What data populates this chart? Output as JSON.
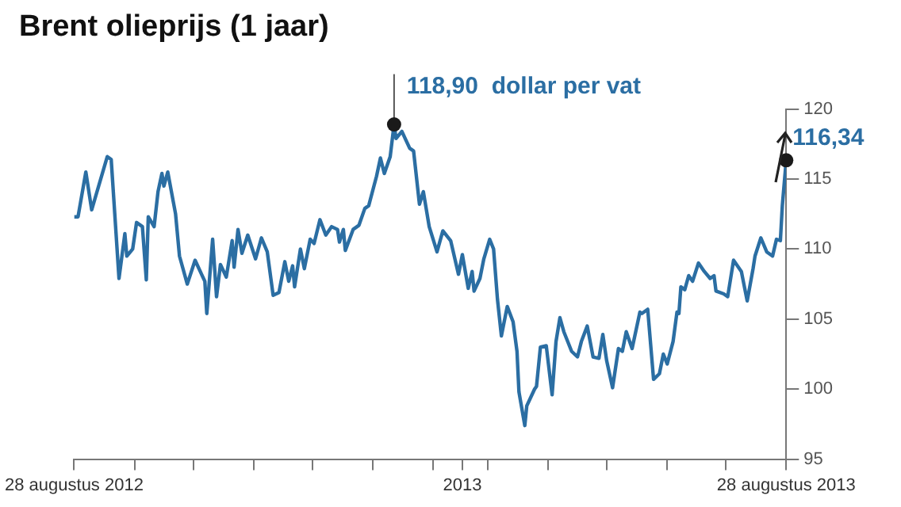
{
  "chart_data": {
    "type": "line",
    "title": "Brent olieprijs (1 jaar)",
    "x": [
      "2012-08-28",
      "2012-08-30",
      "2012-09-03",
      "2012-09-06",
      "2012-09-14",
      "2012-09-16",
      "2012-09-20",
      "2012-09-23",
      "2012-09-24",
      "2012-09-27",
      "2012-09-29",
      "2012-10-02",
      "2012-10-04",
      "2012-10-05",
      "2012-10-08",
      "2012-10-10",
      "2012-10-12",
      "2012-10-13",
      "2012-10-15",
      "2012-10-19",
      "2012-10-21",
      "2012-10-25",
      "2012-10-29",
      "2012-11-03",
      "2012-11-04",
      "2012-11-07",
      "2012-11-09",
      "2012-11-11",
      "2012-11-14",
      "2012-11-17",
      "2012-11-18",
      "2012-11-20",
      "2012-11-22",
      "2012-11-25",
      "2012-11-29",
      "2012-12-02",
      "2012-12-05",
      "2012-12-08",
      "2012-12-11",
      "2012-12-14",
      "2012-12-16",
      "2012-12-18",
      "2012-12-19",
      "2012-12-22",
      "2012-12-24",
      "2012-12-27",
      "2012-12-29",
      "2013-01-01",
      "2013-01-04",
      "2013-01-07",
      "2013-01-10",
      "2013-01-11",
      "2013-01-13",
      "2013-01-14",
      "2013-01-18",
      "2013-01-21",
      "2013-01-24",
      "2013-01-26",
      "2013-01-30",
      "2013-02-01",
      "2013-02-03",
      "2013-02-06",
      "2013-02-08",
      "2013-02-09",
      "2013-02-12",
      "2013-02-16",
      "2013-02-18",
      "2013-02-21",
      "2013-02-23",
      "2013-02-26",
      "2013-03-02",
      "2013-03-05",
      "2013-03-09",
      "2013-03-13",
      "2013-03-15",
      "2013-03-18",
      "2013-03-20",
      "2013-03-21",
      "2013-03-24",
      "2013-03-26",
      "2013-03-29",
      "2013-03-31",
      "2013-04-02",
      "2013-04-04",
      "2013-04-07",
      "2013-04-10",
      "2013-04-12",
      "2013-04-13",
      "2013-04-16",
      "2013-04-17",
      "2013-04-21",
      "2013-04-22",
      "2013-04-24",
      "2013-04-27",
      "2013-04-30",
      "2013-05-02",
      "2013-05-04",
      "2013-05-06",
      "2013-05-10",
      "2013-05-13",
      "2013-05-15",
      "2013-05-18",
      "2013-05-21",
      "2013-05-24",
      "2013-05-26",
      "2013-05-28",
      "2013-05-31",
      "2013-06-03",
      "2013-06-05",
      "2013-06-07",
      "2013-06-10",
      "2013-06-14",
      "2013-06-15",
      "2013-06-18",
      "2013-06-21",
      "2013-06-24",
      "2013-06-26",
      "2013-06-28",
      "2013-07-01",
      "2013-07-03",
      "2013-07-04",
      "2013-07-05",
      "2013-07-07",
      "2013-07-09",
      "2013-07-11",
      "2013-07-14",
      "2013-07-17",
      "2013-07-20",
      "2013-07-22",
      "2013-07-23",
      "2013-07-27",
      "2013-07-29",
      "2013-08-01",
      "2013-08-05",
      "2013-08-08",
      "2013-08-11",
      "2013-08-12",
      "2013-08-15",
      "2013-08-18",
      "2013-08-21",
      "2013-08-23",
      "2013-08-25",
      "2013-08-26",
      "2013-08-28"
    ],
    "series": [
      {
        "color": "#2b6ea3",
        "values": [
          112.3,
          112.3,
          115.5,
          112.8,
          116.6,
          116.4,
          107.9,
          111.1,
          109.5,
          110.0,
          111.9,
          111.6,
          107.8,
          112.3,
          111.6,
          114.1,
          115.4,
          114.5,
          115.5,
          112.5,
          109.5,
          107.5,
          109.2,
          107.7,
          105.4,
          110.7,
          106.6,
          108.9,
          108.0,
          110.6,
          108.7,
          111.4,
          109.7,
          111.0,
          109.3,
          110.8,
          109.8,
          106.7,
          106.9,
          109.1,
          107.7,
          108.8,
          107.3,
          110.0,
          108.6,
          110.7,
          110.4,
          112.1,
          111.0,
          111.6,
          111.4,
          110.5,
          111.4,
          109.9,
          111.4,
          111.7,
          112.9,
          113.1,
          115.2,
          116.5,
          115.4,
          116.6,
          118.9,
          117.9,
          118.4,
          117.2,
          117.0,
          113.2,
          114.1,
          111.6,
          109.8,
          111.3,
          110.6,
          108.2,
          109.6,
          107.2,
          108.4,
          107.0,
          107.9,
          109.3,
          110.7,
          110.0,
          106.4,
          103.8,
          105.9,
          104.8,
          102.7,
          99.8,
          97.4,
          98.8,
          100.0,
          100.2,
          103.0,
          103.1,
          99.6,
          103.4,
          105.1,
          104.1,
          102.7,
          102.3,
          103.4,
          104.5,
          102.3,
          102.2,
          103.9,
          102.0,
          100.1,
          102.9,
          102.7,
          104.1,
          102.9,
          105.5,
          105.4,
          105.7,
          100.7,
          101.1,
          102.5,
          101.8,
          103.4,
          105.5,
          105.4,
          107.3,
          107.1,
          108.1,
          107.7,
          109.0,
          108.4,
          107.9,
          108.1,
          107.0,
          106.8,
          106.6,
          109.2,
          108.4,
          106.3,
          108.6,
          109.5,
          110.8,
          109.8,
          109.5,
          110.7,
          110.6,
          113.1,
          116.34
        ]
      }
    ],
    "xlim": [
      "2012-08-28",
      "2013-08-28"
    ],
    "xticks": [
      {
        "value": "2012-08-28",
        "label": "28 augustus 2012"
      },
      {
        "value": "2012-09-28",
        "label": null
      },
      {
        "value": "2012-10-28",
        "label": null
      },
      {
        "value": "2012-11-28",
        "label": null
      },
      {
        "value": "2012-12-28",
        "label": null
      },
      {
        "value": "2013-01-28",
        "label": null
      },
      {
        "value": "2013-02-28",
        "label": null
      },
      {
        "value": "2013-03-15",
        "label": "2013"
      },
      {
        "value": "2013-03-28",
        "label": null
      },
      {
        "value": "2013-04-28",
        "label": null
      },
      {
        "value": "2013-05-28",
        "label": null
      },
      {
        "value": "2013-06-28",
        "label": null
      },
      {
        "value": "2013-07-28",
        "label": null
      },
      {
        "value": "2013-08-28",
        "label": "28 augustus 2013"
      }
    ],
    "ylim": [
      95,
      120
    ],
    "yticks": [
      95,
      100,
      105,
      110,
      115,
      120
    ],
    "annotations": [
      {
        "text": "118,90  dollar per vat",
        "x": "2013-02-08",
        "y": 118.9
      },
      {
        "text": "116,34",
        "x": "2013-08-28",
        "y": 116.34
      }
    ]
  }
}
